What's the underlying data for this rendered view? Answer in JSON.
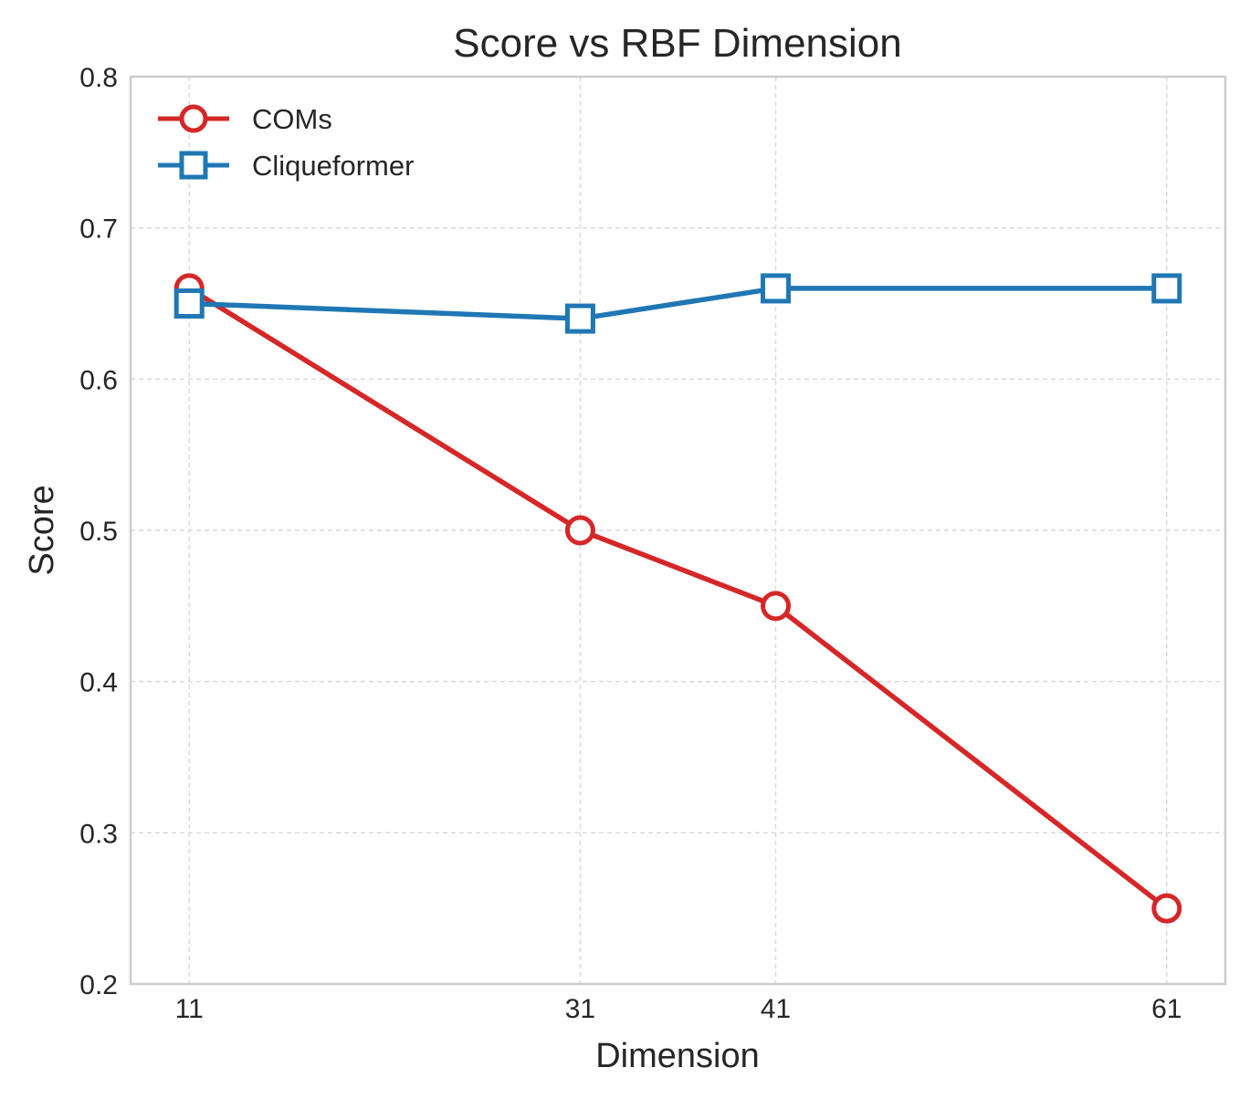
{
  "chart_data": {
    "type": "line",
    "title": "Score vs RBF Dimension",
    "xlabel": "Dimension",
    "ylabel": "Score",
    "x": [
      11,
      31,
      41,
      61
    ],
    "x_tick_labels": [
      "11",
      "31",
      "41",
      "61"
    ],
    "xlim": [
      8,
      64
    ],
    "ylim": [
      0.2,
      0.8
    ],
    "y_ticks": [
      0.2,
      0.3,
      0.4,
      0.5,
      0.6,
      0.7,
      0.8
    ],
    "y_tick_labels": [
      "0.2",
      "0.3",
      "0.4",
      "0.5",
      "0.6",
      "0.7",
      "0.8"
    ],
    "grid": true,
    "legend_position": "top-left",
    "series": [
      {
        "name": "COMs",
        "values": [
          0.66,
          0.5,
          0.45,
          0.25
        ],
        "color": "#d62728",
        "marker": "circle"
      },
      {
        "name": "Cliqueformer",
        "values": [
          0.65,
          0.64,
          0.66,
          0.66
        ],
        "color": "#1f77b4",
        "marker": "square"
      }
    ]
  }
}
